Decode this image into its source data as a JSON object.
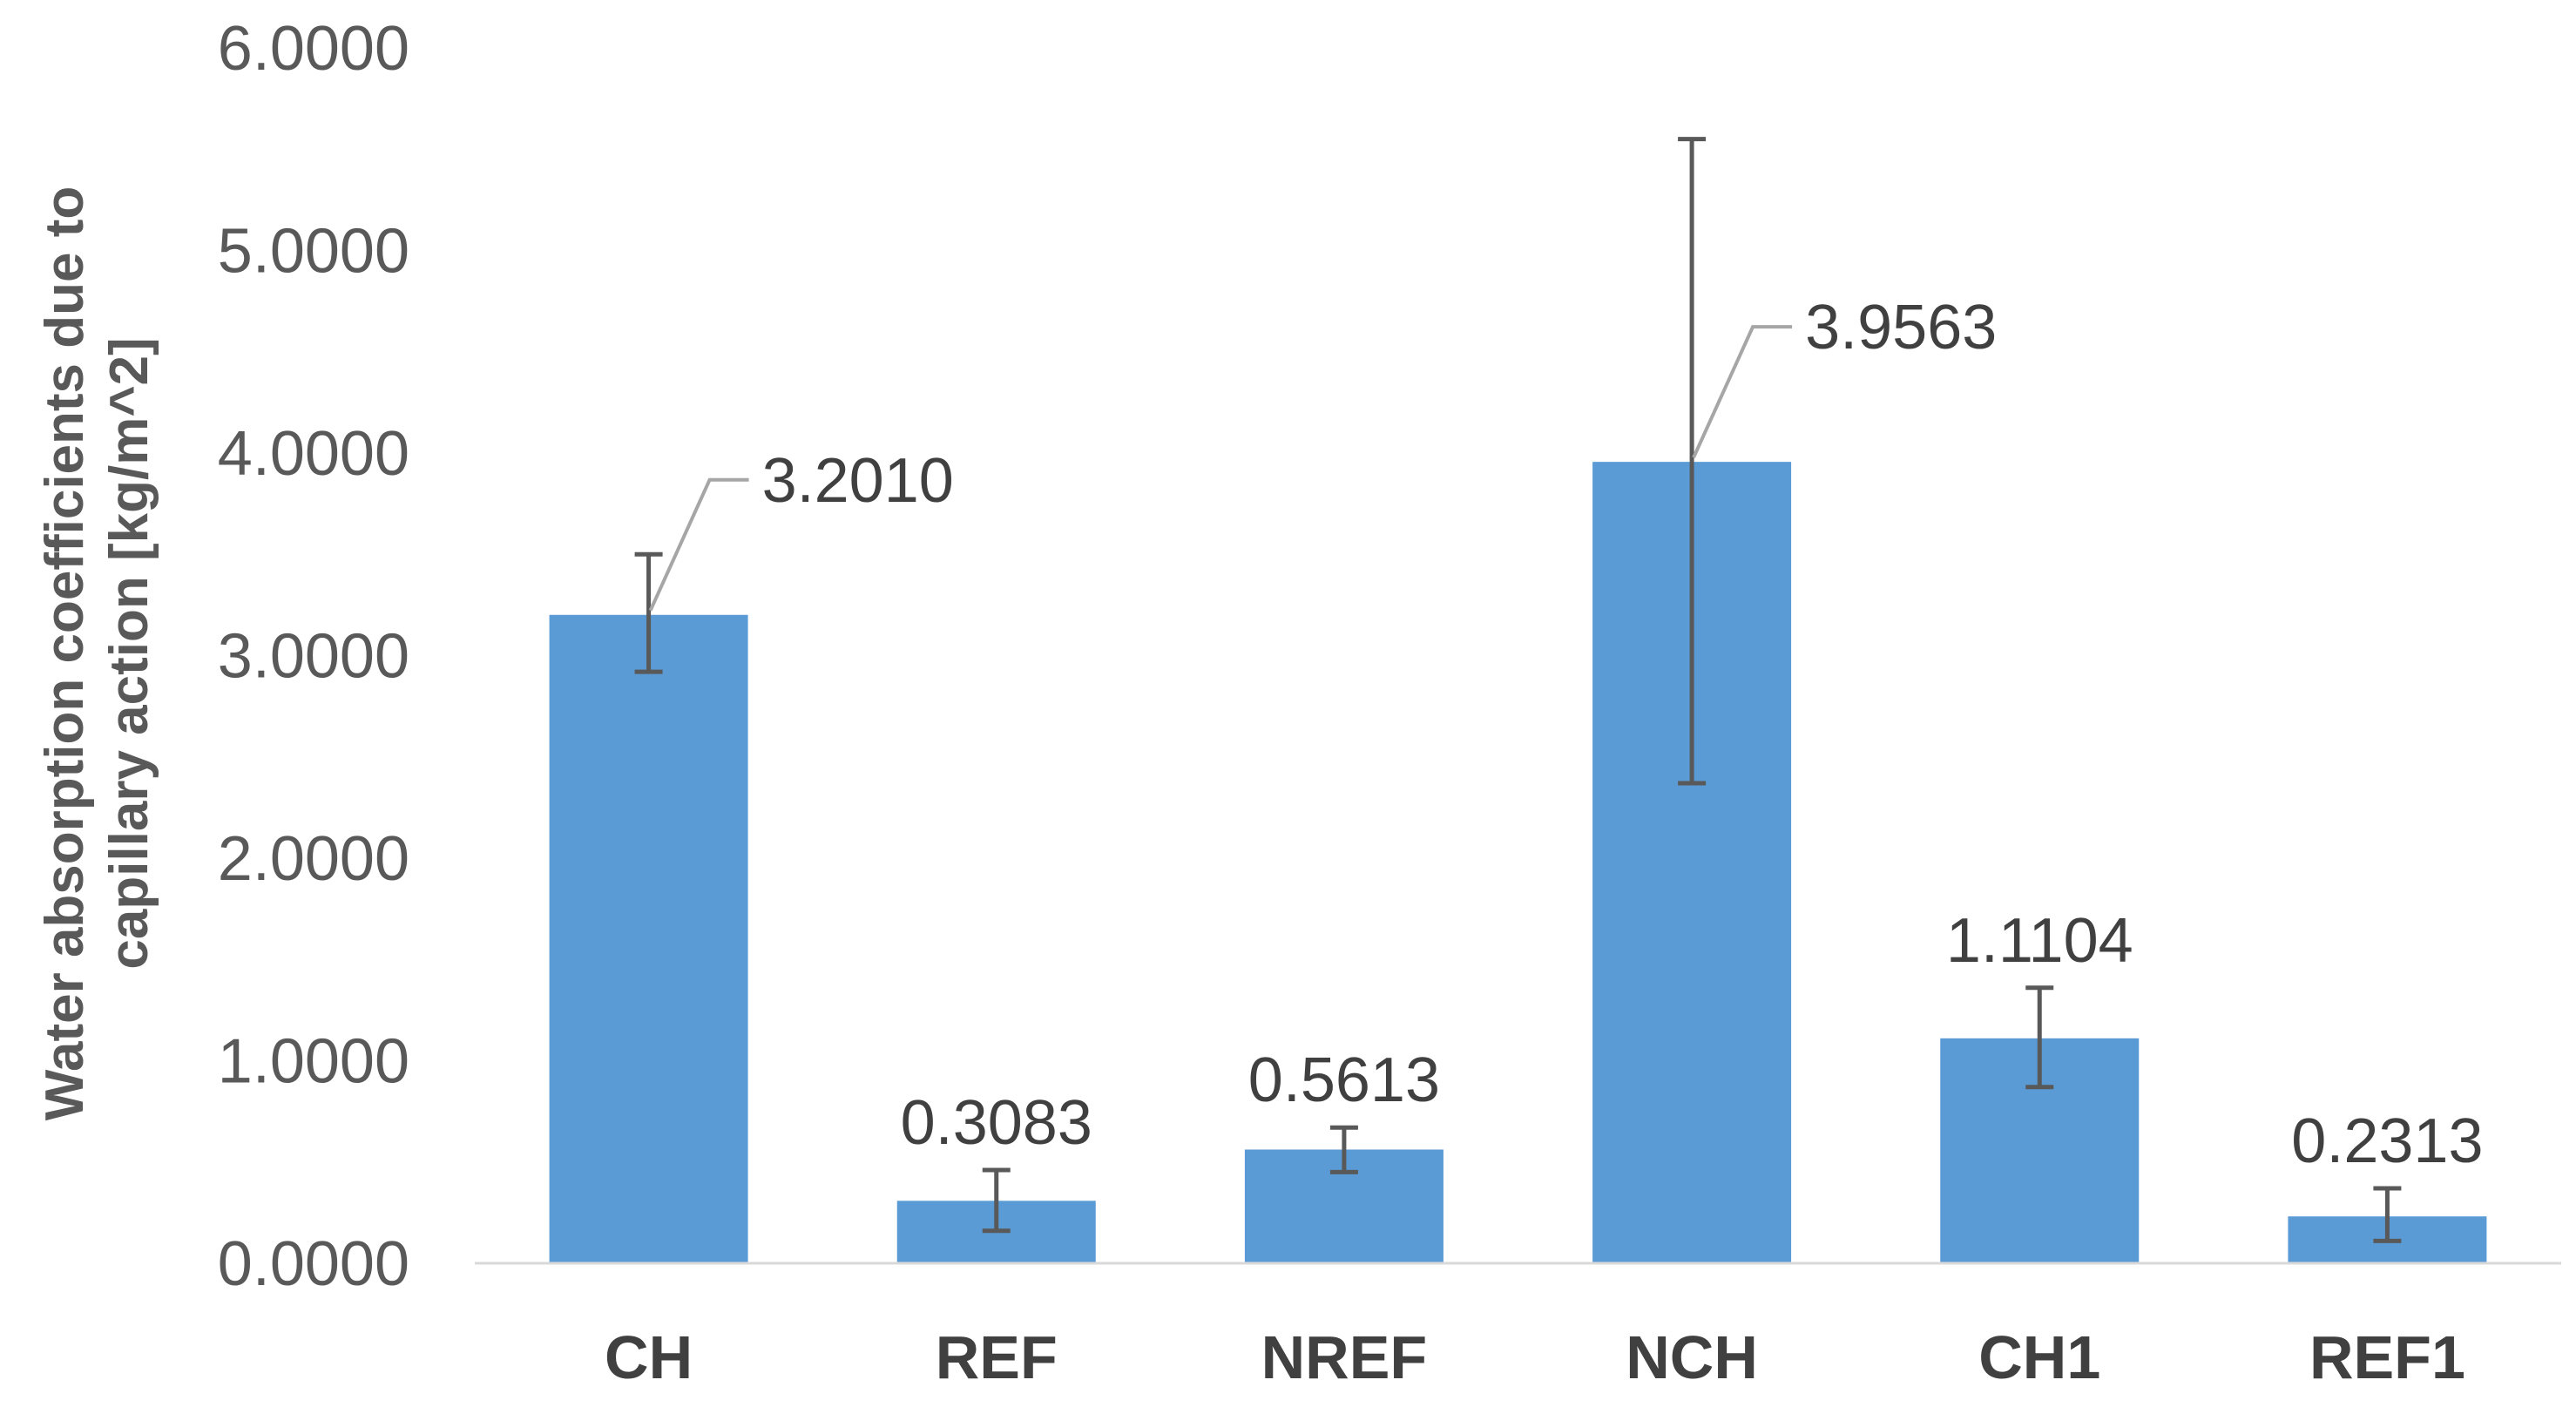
{
  "chart_data": {
    "type": "bar",
    "categories": [
      "CH",
      "REF",
      "NREF",
      "NCH",
      "CH1",
      "REF1"
    ],
    "values": [
      3.201,
      0.3083,
      0.5613,
      3.9563,
      1.1104,
      0.2313
    ],
    "error_low": [
      2.92,
      0.16,
      0.45,
      2.37,
      0.87,
      0.11
    ],
    "error_high": [
      3.5,
      0.46,
      0.67,
      5.55,
      1.36,
      0.37
    ],
    "data_labels": [
      "3.2010",
      "0.3083",
      "0.5613",
      "3.9563",
      "1.1104",
      "0.2313"
    ],
    "ylabel_lines": [
      "Water absorption coefficients due to",
      "capillary action [kg/m^2]"
    ],
    "ylim": [
      0,
      6
    ],
    "yticks": [
      0,
      1,
      2,
      3,
      4,
      5,
      6
    ],
    "ytick_labels": [
      "0.0000",
      "1.0000",
      "2.0000",
      "3.0000",
      "4.0000",
      "5.0000",
      "6.0000"
    ],
    "grid": false,
    "legend": "none",
    "colors": {
      "bar": "#5b9bd5",
      "error": "#595959",
      "axis": "#d9d9d9",
      "leader": "#a6a6a6"
    }
  }
}
